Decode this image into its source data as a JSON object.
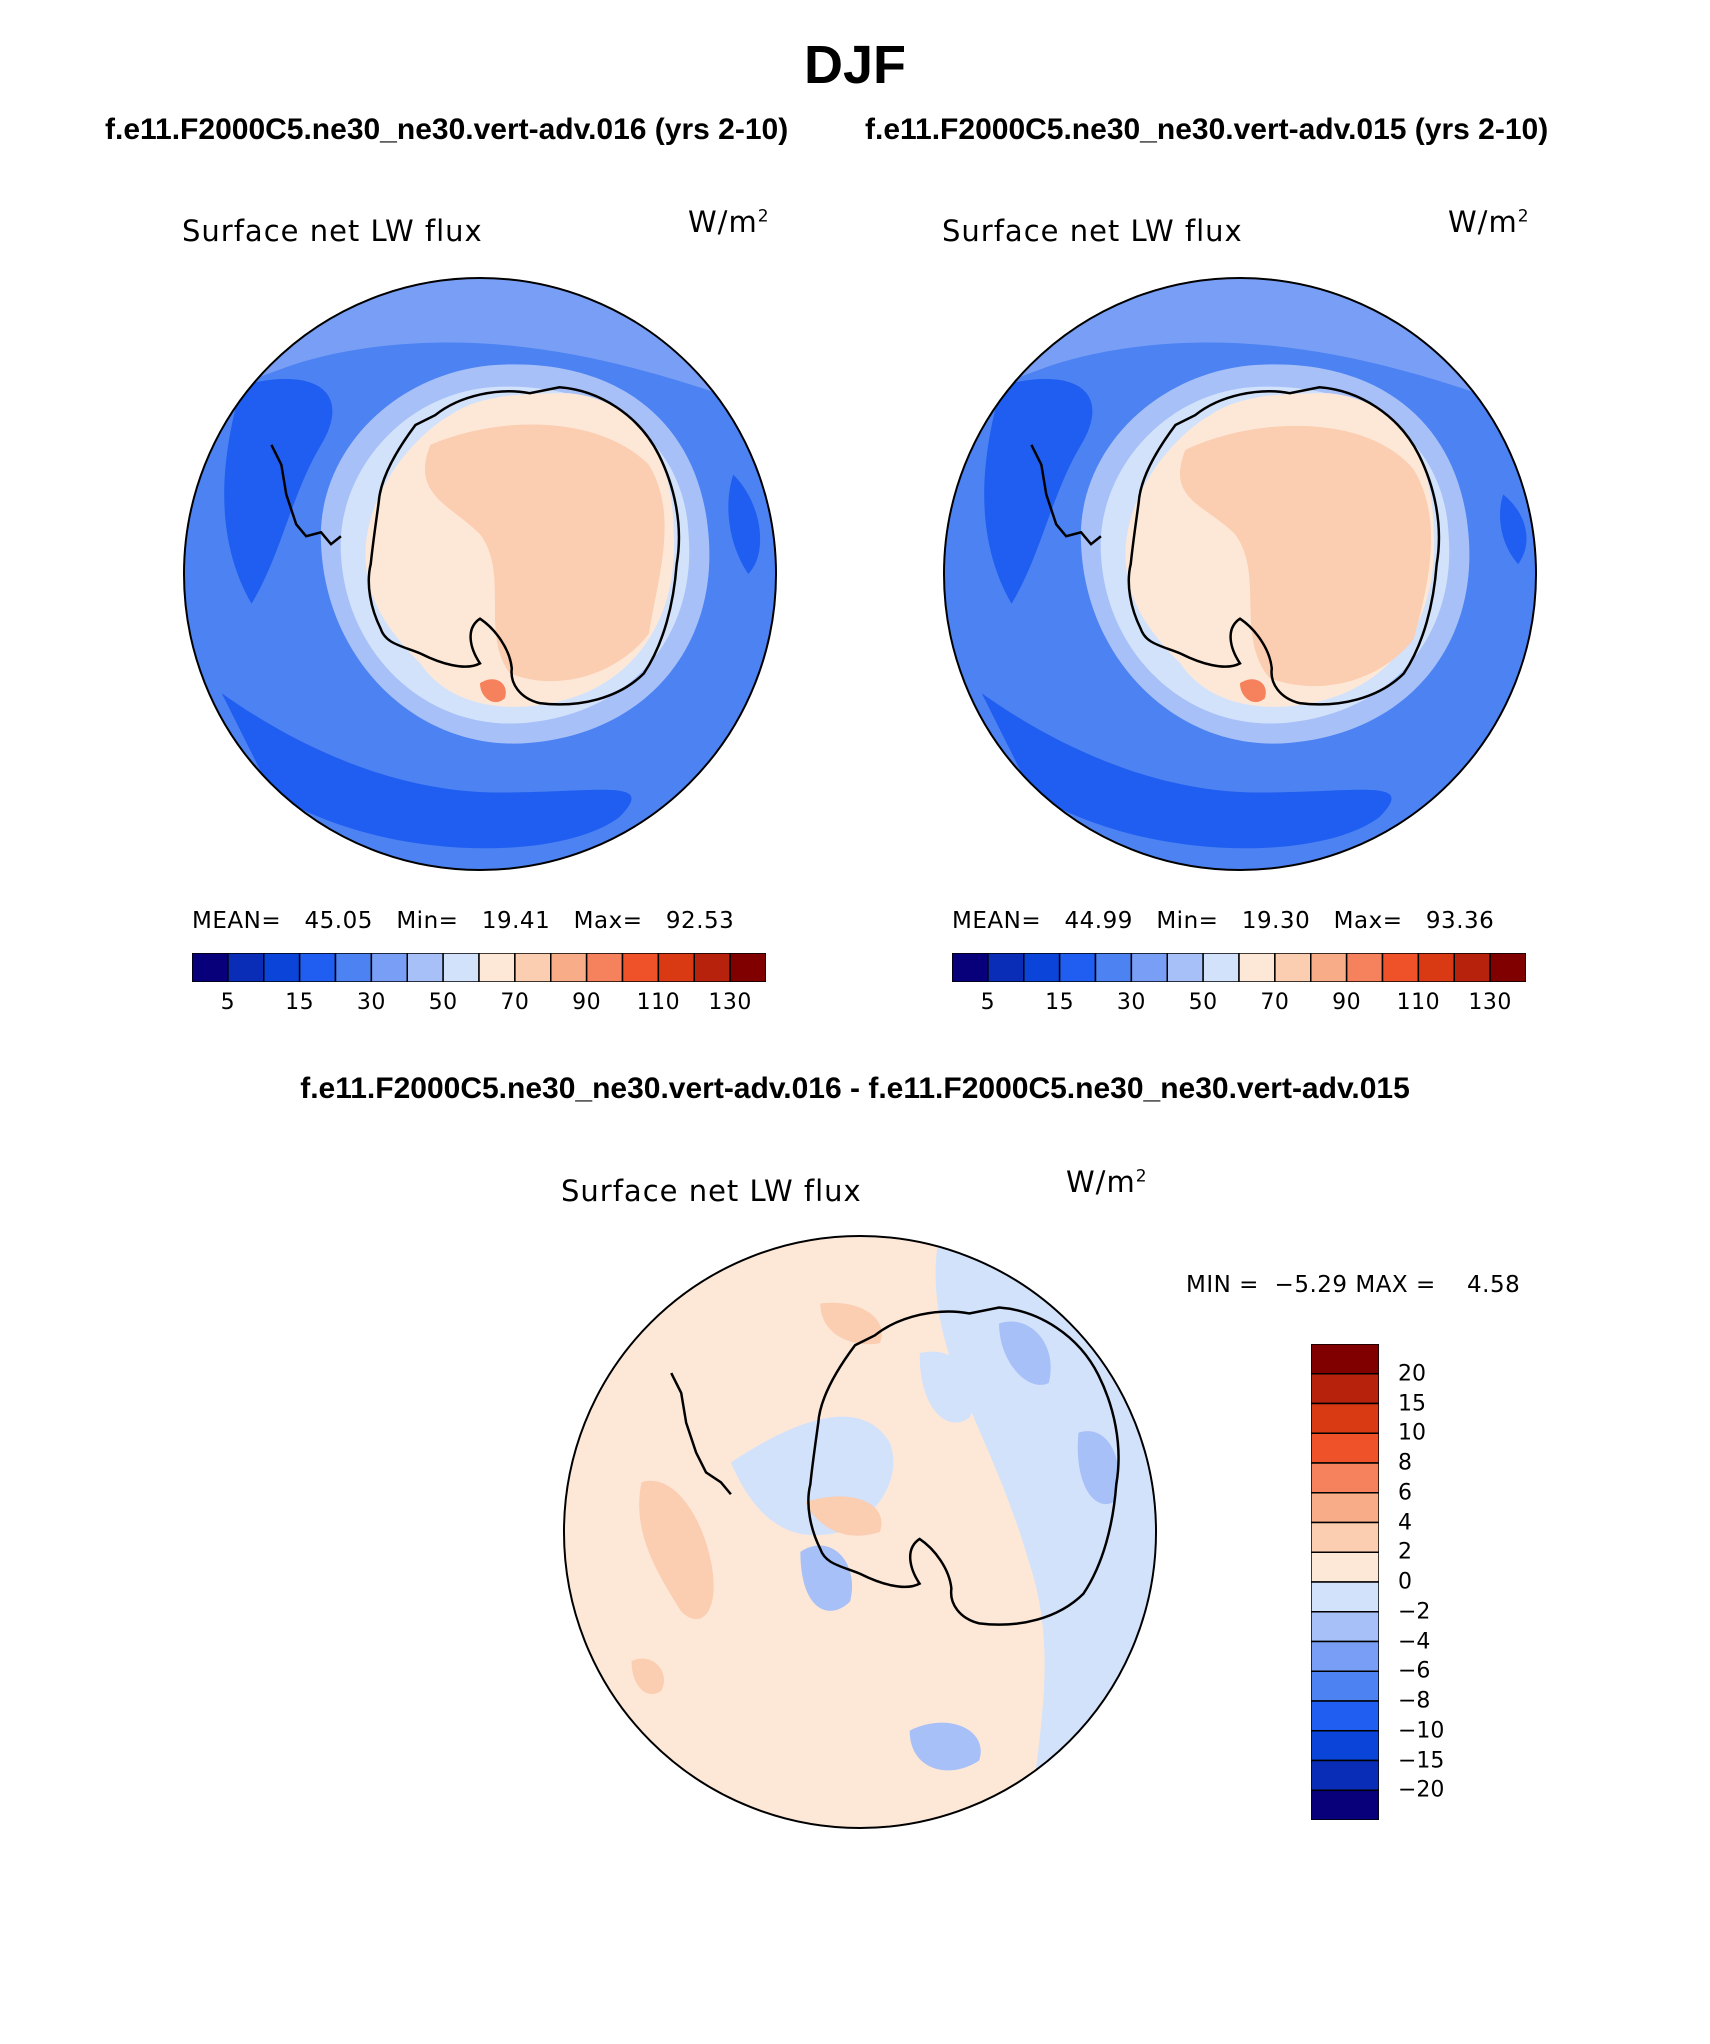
{
  "page": {
    "title": "DJF",
    "case_left_header": "f.e11.F2000C5.ne30_ne30.vert-adv.016 (yrs 2-10)",
    "case_right_header": "f.e11.F2000C5.ne30_ne30.vert-adv.015 (yrs 2-10)",
    "difference_header": "f.e11.F2000C5.ne30_ne30.vert-adv.016 - f.e11.F2000C5.ne30_ne30.vert-adv.015"
  },
  "chart_data": [
    {
      "type": "heatmap",
      "projection": "south-polar-stereographic",
      "title": "Surface net LW flux",
      "units_base": "W/m",
      "units_exp": "2",
      "stats": {
        "mean_label": "MEAN=",
        "mean": "45.05",
        "min_label": "Min=",
        "min": "19.41",
        "max_label": "Max=",
        "max": "92.53"
      },
      "colorbar": {
        "orientation": "horizontal",
        "levels": [
          5,
          10,
          15,
          20,
          30,
          40,
          50,
          60,
          70,
          80,
          90,
          100,
          110,
          120,
          130
        ],
        "tick_labels": [
          "5",
          "15",
          "30",
          "50",
          "70",
          "90",
          "110",
          "130"
        ],
        "colors": [
          "#08007a",
          "#0a2db8",
          "#0b44d8",
          "#1f5ef0",
          "#4c82f2",
          "#789ff5",
          "#a7c0f8",
          "#d2e2fb",
          "#fde8d8",
          "#fbcdb1",
          "#f8ac88",
          "#f5825c",
          "#ef5128",
          "#d93a14",
          "#b7220d",
          "#800000"
        ]
      }
    },
    {
      "type": "heatmap",
      "projection": "south-polar-stereographic",
      "title": "Surface net LW flux",
      "units_base": "W/m",
      "units_exp": "2",
      "stats": {
        "mean_label": "MEAN=",
        "mean": "44.99",
        "min_label": "Min=",
        "min": "19.30",
        "max_label": "Max=",
        "max": "93.36"
      },
      "colorbar": {
        "orientation": "horizontal",
        "levels": [
          5,
          10,
          15,
          20,
          30,
          40,
          50,
          60,
          70,
          80,
          90,
          100,
          110,
          120,
          130
        ],
        "tick_labels": [
          "5",
          "15",
          "30",
          "50",
          "70",
          "90",
          "110",
          "130"
        ],
        "colors": [
          "#08007a",
          "#0a2db8",
          "#0b44d8",
          "#1f5ef0",
          "#4c82f2",
          "#789ff5",
          "#a7c0f8",
          "#d2e2fb",
          "#fde8d8",
          "#fbcdb1",
          "#f8ac88",
          "#f5825c",
          "#ef5128",
          "#d93a14",
          "#b7220d",
          "#800000"
        ]
      }
    },
    {
      "type": "heatmap",
      "projection": "south-polar-stereographic",
      "title": "Surface net LW flux",
      "units_base": "W/m",
      "units_exp": "2",
      "stats": {
        "min_label": "MIN =",
        "min": "−5.29",
        "max_label": "MAX =",
        "max": "4.58"
      },
      "colorbar": {
        "orientation": "vertical",
        "levels": [
          -20,
          -15,
          -10,
          -8,
          -6,
          -4,
          -2,
          0,
          2,
          4,
          6,
          8,
          10,
          15,
          20
        ],
        "tick_labels": [
          "20",
          "15",
          "10",
          "8",
          "6",
          "4",
          "2",
          "0",
          "−2",
          "−4",
          "−6",
          "−8",
          "−10",
          "−15",
          "−20"
        ],
        "colors": [
          "#800000",
          "#b7220d",
          "#d93a14",
          "#ef5128",
          "#f5825c",
          "#f8ac88",
          "#fbcdb1",
          "#fde8d8",
          "#d2e2fb",
          "#a7c0f8",
          "#789ff5",
          "#4c82f2",
          "#1f5ef0",
          "#0b44d8",
          "#0a2db8",
          "#08007a"
        ]
      }
    }
  ]
}
